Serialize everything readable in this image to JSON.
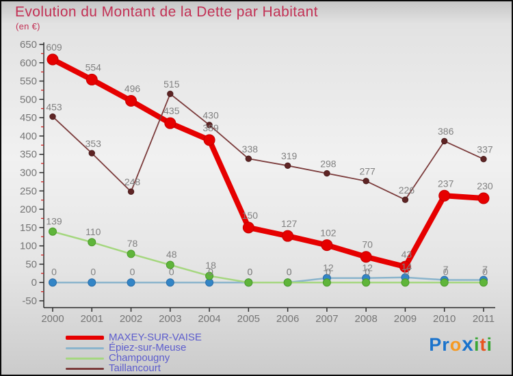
{
  "header": {
    "title": "Evolution du Montant de la Dette par Habitant",
    "subtitle": "(en €)"
  },
  "chart_data": {
    "type": "line",
    "title": "Evolution du Montant de la Dette par Habitant",
    "subtitle": "(en €)",
    "x": [
      2000,
      2001,
      2002,
      2003,
      2004,
      2005,
      2006,
      2007,
      2008,
      2009,
      2010,
      2011
    ],
    "series": [
      {
        "name": "MAXEY-SUR-VAISE",
        "values": [
          609,
          554,
          496,
          435,
          389,
          150,
          127,
          102,
          70,
          43,
          237,
          230
        ],
        "line_color": "#e60000",
        "dot_color": "#e60000",
        "dot_stroke": "#c40000",
        "line_width": 8,
        "dot_radius": 8
      },
      {
        "name": "Épiez-sur-Meuse",
        "values": [
          0,
          0,
          0,
          0,
          0,
          0,
          0,
          12,
          12,
          14,
          7,
          7
        ],
        "line_color": "#8ab4cc",
        "dot_color": "#3385c6",
        "dot_stroke": "#2a6da8",
        "line_width": 2.5,
        "dot_radius": 5.5
      },
      {
        "name": "Champougny",
        "values": [
          139,
          110,
          78,
          48,
          18,
          0,
          0,
          0,
          0,
          0,
          0,
          0
        ],
        "line_color": "#a5d77f",
        "dot_color": "#5fb53a",
        "dot_stroke": "#4a9a2a",
        "line_width": 2.5,
        "dot_radius": 5.5
      },
      {
        "name": "Taillancourt",
        "values": [
          453,
          353,
          248,
          515,
          430,
          338,
          319,
          298,
          277,
          226,
          386,
          337
        ],
        "line_color": "#7b3b3b",
        "dot_color": "#5e2424",
        "dot_stroke": "#4a1c1c",
        "line_width": 1.8,
        "dot_radius": 4.2
      }
    ],
    "ylim": [
      -50,
      650
    ],
    "ytick_step": 50,
    "grid": false,
    "legend_position": "bottom-left",
    "label_color": "#808080",
    "axis_color": "#2a2a2a",
    "minor_tick_color": "#cc2222",
    "tick_label_color": "#757575"
  },
  "logo": {
    "text": "Proxiti",
    "letters": [
      {
        "ch": "P",
        "color": "#1a73cc",
        "big": false
      },
      {
        "ch": "r",
        "color": "#1a73cc",
        "big": false
      },
      {
        "ch": "o",
        "color": "#f59a23",
        "big": false
      },
      {
        "ch": "x",
        "color": "#1a73cc",
        "big": true
      },
      {
        "ch": "i",
        "color": "#3aa635",
        "big": false
      },
      {
        "ch": "t",
        "color": "#e8541d",
        "big": false
      },
      {
        "ch": "i",
        "color": "#3aa635",
        "big": false
      }
    ]
  }
}
